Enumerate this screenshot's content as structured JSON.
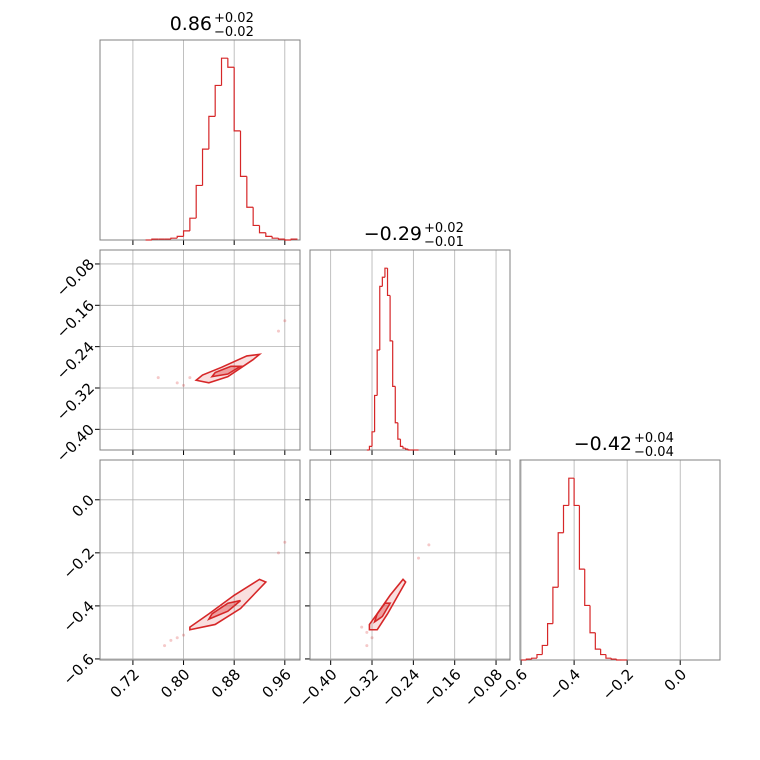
{
  "chart_data": {
    "type": "corner",
    "color": "#d62728",
    "grid": true,
    "params": [
      {
        "title": {
          "median": "0.86",
          "plus": "+0.02",
          "minus": "−0.02"
        },
        "lim": [
          0.668,
          0.984
        ],
        "ticks": [
          0.72,
          {
            "value": 0.8,
            "label": "0.80"
          },
          0.88,
          0.96
        ],
        "hist_ylim": [
          0,
          110
        ],
        "bins": [
          0.74,
          0.75,
          0.76,
          0.77,
          0.78,
          0.79,
          0.8,
          0.81,
          0.82,
          0.83,
          0.84,
          0.85,
          0.86,
          0.87,
          0.88,
          0.89,
          0.9,
          0.91,
          0.92,
          0.93,
          0.94,
          0.95,
          0.96,
          0.97,
          0.98
        ],
        "counts": [
          0,
          0.5,
          0.5,
          0.5,
          1,
          2,
          5,
          12,
          30,
          50,
          68,
          85,
          100,
          95,
          60,
          35,
          18,
          8,
          4,
          2,
          1,
          0.5,
          0,
          0.5
        ]
      },
      {
        "title": {
          "median": "−0.29",
          "plus": "+0.02",
          "minus": "−0.01"
        },
        "lim": [
          -0.44,
          -0.053
        ],
        "ticks": [
          {
            "value": -0.4,
            "label": "−0.40"
          },
          {
            "value": -0.32,
            "label": "−0.32"
          },
          {
            "value": -0.24,
            "label": "−0.24"
          },
          {
            "value": -0.16,
            "label": "−0.16"
          },
          {
            "value": -0.08,
            "label": "−0.08"
          }
        ],
        "hist_ylim": [
          0,
          110
        ],
        "bins": [
          -0.33,
          -0.325,
          -0.32,
          -0.315,
          -0.31,
          -0.305,
          -0.3,
          -0.295,
          -0.29,
          -0.285,
          -0.28,
          -0.275,
          -0.27,
          -0.265,
          -0.26,
          -0.255,
          -0.25,
          -0.245,
          -0.24,
          -0.235,
          -0.23
        ],
        "counts": [
          0,
          2,
          10,
          30,
          55,
          90,
          95,
          100,
          85,
          60,
          35,
          15,
          6,
          2,
          1,
          0.5,
          0,
          0,
          0,
          0
        ]
      },
      {
        "title": {
          "median": "−0.42",
          "plus": "+0.04",
          "minus": "−0.04"
        },
        "lim": [
          -0.604,
          0.15
        ],
        "ticks": [
          {
            "value": -0.6,
            "label": "−0.6"
          },
          {
            "value": -0.4,
            "label": "−0.4"
          },
          {
            "value": -0.2,
            "label": "−0.2"
          },
          {
            "value": 0,
            "label": "0.0"
          }
        ],
        "hist_ylim": [
          0,
          110
        ],
        "bins": [
          -0.6,
          -0.58,
          -0.56,
          -0.54,
          -0.52,
          -0.5,
          -0.48,
          -0.46,
          -0.44,
          -0.42,
          -0.4,
          -0.38,
          -0.36,
          -0.34,
          -0.32,
          -0.3,
          -0.28,
          -0.26,
          -0.24,
          -0.22,
          -0.2
        ],
        "counts": [
          0,
          0.5,
          1,
          3,
          8,
          20,
          40,
          70,
          85,
          100,
          85,
          50,
          30,
          15,
          6,
          3,
          1,
          0.5,
          0,
          0
        ]
      }
    ],
    "pairs": [
      [
        {
          "points": {
            "x": [
              0.76,
              0.79,
              0.8,
              0.95,
              0.96,
              0.81
            ],
            "y": [
              -0.3,
              -0.31,
              -0.315,
              -0.21,
              -0.19,
              -0.3
            ]
          },
          "contours": [
            {
              "x": [
                0.82,
                0.84,
                0.87,
                0.91,
                0.92,
                0.9,
                0.86,
                0.83
              ],
              "y": [
                -0.305,
                -0.31,
                -0.298,
                -0.265,
                -0.255,
                -0.258,
                -0.28,
                -0.295
              ]
            },
            {
              "x": [
                0.845,
                0.87,
                0.89,
                0.875,
                0.85
              ],
              "y": [
                -0.298,
                -0.293,
                -0.278,
                -0.278,
                -0.29
              ]
            }
          ]
        }
      ],
      [
        {
          "points": {
            "x": [
              0.77,
              0.79,
              0.8,
              0.95,
              0.96,
              0.78
            ],
            "y": [
              -0.55,
              -0.52,
              -0.51,
              -0.2,
              -0.16,
              -0.53
            ]
          },
          "contours": [
            {
              "x": [
                0.81,
                0.85,
                0.89,
                0.93,
                0.92,
                0.88,
                0.84,
                0.81
              ],
              "y": [
                -0.49,
                -0.47,
                -0.41,
                -0.31,
                -0.3,
                -0.36,
                -0.43,
                -0.48
              ]
            },
            {
              "x": [
                0.84,
                0.87,
                0.89,
                0.87,
                0.845
              ],
              "y": [
                -0.45,
                -0.42,
                -0.38,
                -0.39,
                -0.43
              ]
            }
          ]
        },
        {
          "points": {
            "x": [
              -0.33,
              -0.34,
              -0.32,
              -0.23,
              -0.21,
              -0.33
            ],
            "y": [
              -0.55,
              -0.48,
              -0.52,
              -0.22,
              -0.17,
              -0.5
            ]
          },
          "contours": [
            {
              "x": [
                -0.325,
                -0.31,
                -0.29,
                -0.255,
                -0.26,
                -0.285,
                -0.31,
                -0.325
              ],
              "y": [
                -0.49,
                -0.49,
                -0.43,
                -0.31,
                -0.3,
                -0.36,
                -0.43,
                -0.47
              ]
            },
            {
              "x": [
                -0.315,
                -0.3,
                -0.285,
                -0.295,
                -0.31
              ],
              "y": [
                -0.46,
                -0.44,
                -0.39,
                -0.39,
                -0.43
              ]
            }
          ]
        }
      ]
    ]
  }
}
